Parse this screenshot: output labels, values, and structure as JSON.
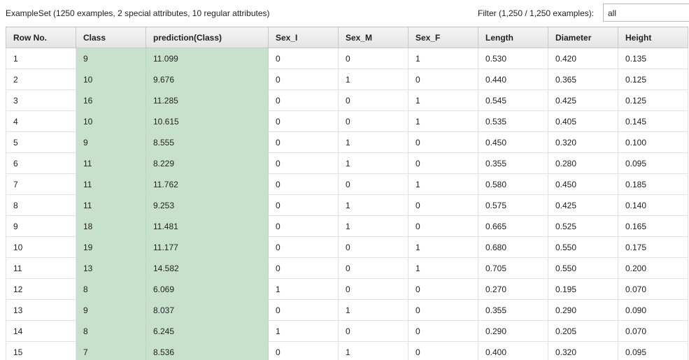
{
  "header": {
    "summary": "ExampleSet (1250 examples, 2 special attributes, 10 regular attributes)",
    "filter_label": "Filter (1,250 / 1,250 examples):",
    "filter_value": "all"
  },
  "colors": {
    "special_column_bg": "#c8e1cd",
    "header_bg": "#ececec"
  },
  "table": {
    "columns": [
      "Row No.",
      "Class",
      "prediction(Class)",
      "Sex_I",
      "Sex_M",
      "Sex_F",
      "Length",
      "Diameter",
      "Height"
    ],
    "special_columns": [
      1,
      2
    ],
    "rows": [
      [
        "1",
        "9",
        "11.099",
        "0",
        "0",
        "1",
        "0.530",
        "0.420",
        "0.135"
      ],
      [
        "2",
        "10",
        "9.676",
        "0",
        "1",
        "0",
        "0.440",
        "0.365",
        "0.125"
      ],
      [
        "3",
        "16",
        "11.285",
        "0",
        "0",
        "1",
        "0.545",
        "0.425",
        "0.125"
      ],
      [
        "4",
        "10",
        "10.615",
        "0",
        "0",
        "1",
        "0.535",
        "0.405",
        "0.145"
      ],
      [
        "5",
        "9",
        "8.555",
        "0",
        "1",
        "0",
        "0.450",
        "0.320",
        "0.100"
      ],
      [
        "6",
        "11",
        "8.229",
        "0",
        "1",
        "0",
        "0.355",
        "0.280",
        "0.095"
      ],
      [
        "7",
        "11",
        "11.762",
        "0",
        "0",
        "1",
        "0.580",
        "0.450",
        "0.185"
      ],
      [
        "8",
        "11",
        "9.253",
        "0",
        "1",
        "0",
        "0.575",
        "0.425",
        "0.140"
      ],
      [
        "9",
        "18",
        "11.481",
        "0",
        "1",
        "0",
        "0.665",
        "0.525",
        "0.165"
      ],
      [
        "10",
        "19",
        "11.177",
        "0",
        "0",
        "1",
        "0.680",
        "0.550",
        "0.175"
      ],
      [
        "11",
        "13",
        "14.582",
        "0",
        "0",
        "1",
        "0.705",
        "0.550",
        "0.200"
      ],
      [
        "12",
        "8",
        "6.069",
        "1",
        "0",
        "0",
        "0.270",
        "0.195",
        "0.070"
      ],
      [
        "13",
        "9",
        "8.037",
        "0",
        "1",
        "0",
        "0.355",
        "0.290",
        "0.090"
      ],
      [
        "14",
        "8",
        "6.245",
        "1",
        "0",
        "0",
        "0.290",
        "0.205",
        "0.070"
      ],
      [
        "15",
        "7",
        "8.536",
        "0",
        "1",
        "0",
        "0.400",
        "0.320",
        "0.095"
      ]
    ]
  }
}
